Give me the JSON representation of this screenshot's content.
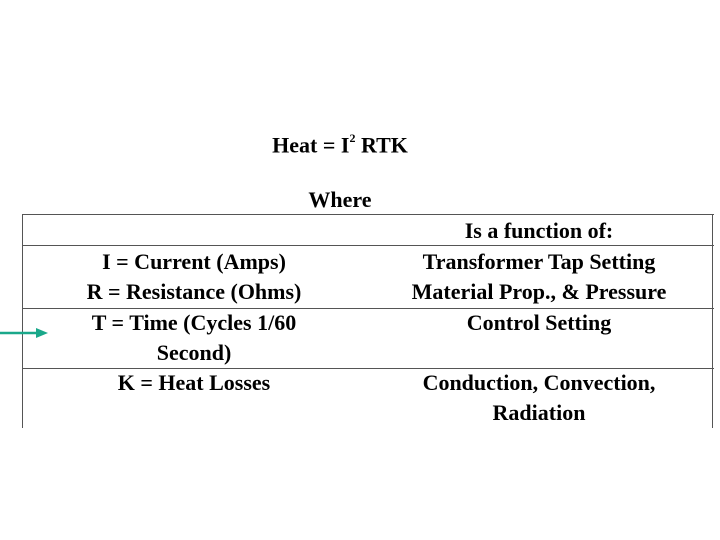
{
  "formula": {
    "prefix": "Heat = I",
    "exponent": "2",
    "suffix": " RTK"
  },
  "where_label": "Where",
  "table": {
    "header_right": "Is a function of:",
    "rows": [
      {
        "left": [
          "I = Current (Amps)",
          "R = Resistance (Ohms)"
        ],
        "right": [
          "Transformer Tap Setting",
          "Material Prop., & Pressure"
        ]
      },
      {
        "left": [
          "T = Time (Cycles 1/60",
          "Second)"
        ],
        "right": [
          "Control Setting"
        ]
      },
      {
        "left": [
          "K = Heat Losses"
        ],
        "right": [
          "Conduction, Convection,",
          "Radiation"
        ]
      }
    ]
  },
  "colors": {
    "text": "#000000",
    "border": "#555555",
    "arrow": "#1aa88a"
  },
  "icons": {
    "pointer": "arrow-right-icon"
  }
}
